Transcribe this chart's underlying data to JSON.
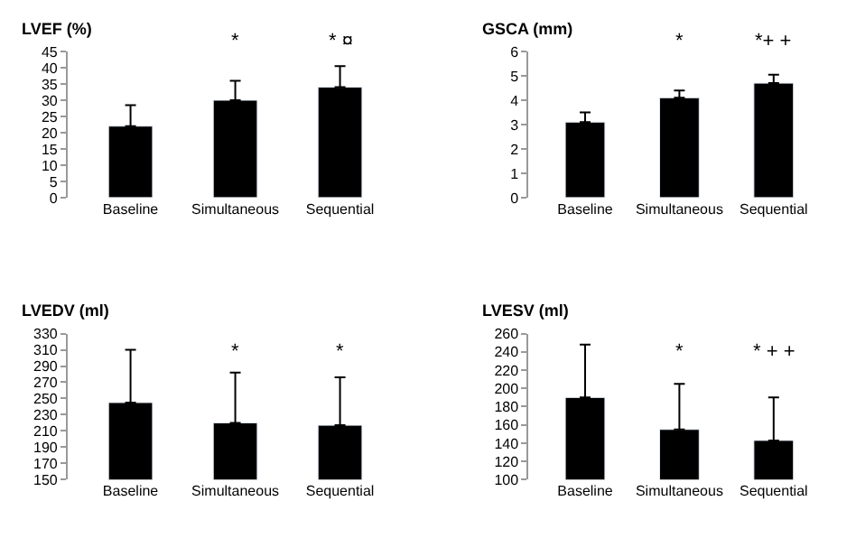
{
  "chart_data": [
    {
      "type": "bar",
      "title": "LVEF (%)",
      "categories": [
        "Baseline",
        "Simultaneous",
        "Sequential"
      ],
      "values": [
        22,
        30,
        34
      ],
      "color": "#000000",
      "errors": [
        [
          22,
          28.5
        ],
        [
          30,
          36
        ],
        [
          34,
          40.5
        ]
      ],
      "ylim": [
        0,
        45
      ],
      "yticks": [
        0,
        5,
        10,
        15,
        20,
        25,
        30,
        35,
        40,
        45
      ],
      "annotations": [
        "*",
        "* ¤"
      ]
    },
    {
      "type": "bar",
      "title": "GSCA (mm)",
      "categories": [
        "Baseline",
        "Simultaneous",
        "Sequential"
      ],
      "values": [
        3.1,
        4.1,
        4.7
      ],
      "color": "#000000",
      "errors": [
        [
          3.1,
          3.5
        ],
        [
          4.1,
          4.4
        ],
        [
          4.7,
          5.05
        ]
      ],
      "ylim": [
        0,
        6
      ],
      "yticks": [
        0,
        1,
        2,
        3,
        4,
        5,
        6
      ],
      "annotations": [
        "*",
        "*+ +"
      ]
    },
    {
      "type": "bar",
      "title": "LVEDV (ml)",
      "categories": [
        "Baseline",
        "Simultaneous",
        "Sequential"
      ],
      "values": [
        245,
        220,
        217
      ],
      "color": "#000000",
      "errors": [
        [
          245,
          310
        ],
        [
          220,
          282
        ],
        [
          217,
          276
        ]
      ],
      "ylim": [
        150,
        330
      ],
      "yticks": [
        150,
        170,
        190,
        210,
        230,
        250,
        270,
        290,
        310,
        330
      ],
      "annotations": [
        "*",
        "*"
      ]
    },
    {
      "type": "bar",
      "title": "LVESV (ml)",
      "categories": [
        "Baseline",
        "Simultaneous",
        "Sequential"
      ],
      "values": [
        190,
        155,
        143
      ],
      "color": "#000000",
      "errors": [
        [
          190,
          248
        ],
        [
          155,
          205
        ],
        [
          143,
          190
        ]
      ],
      "ylim": [
        100,
        260
      ],
      "yticks": [
        100,
        120,
        140,
        160,
        180,
        200,
        220,
        240,
        260
      ],
      "annotations": [
        "*",
        "* + +"
      ]
    }
  ]
}
